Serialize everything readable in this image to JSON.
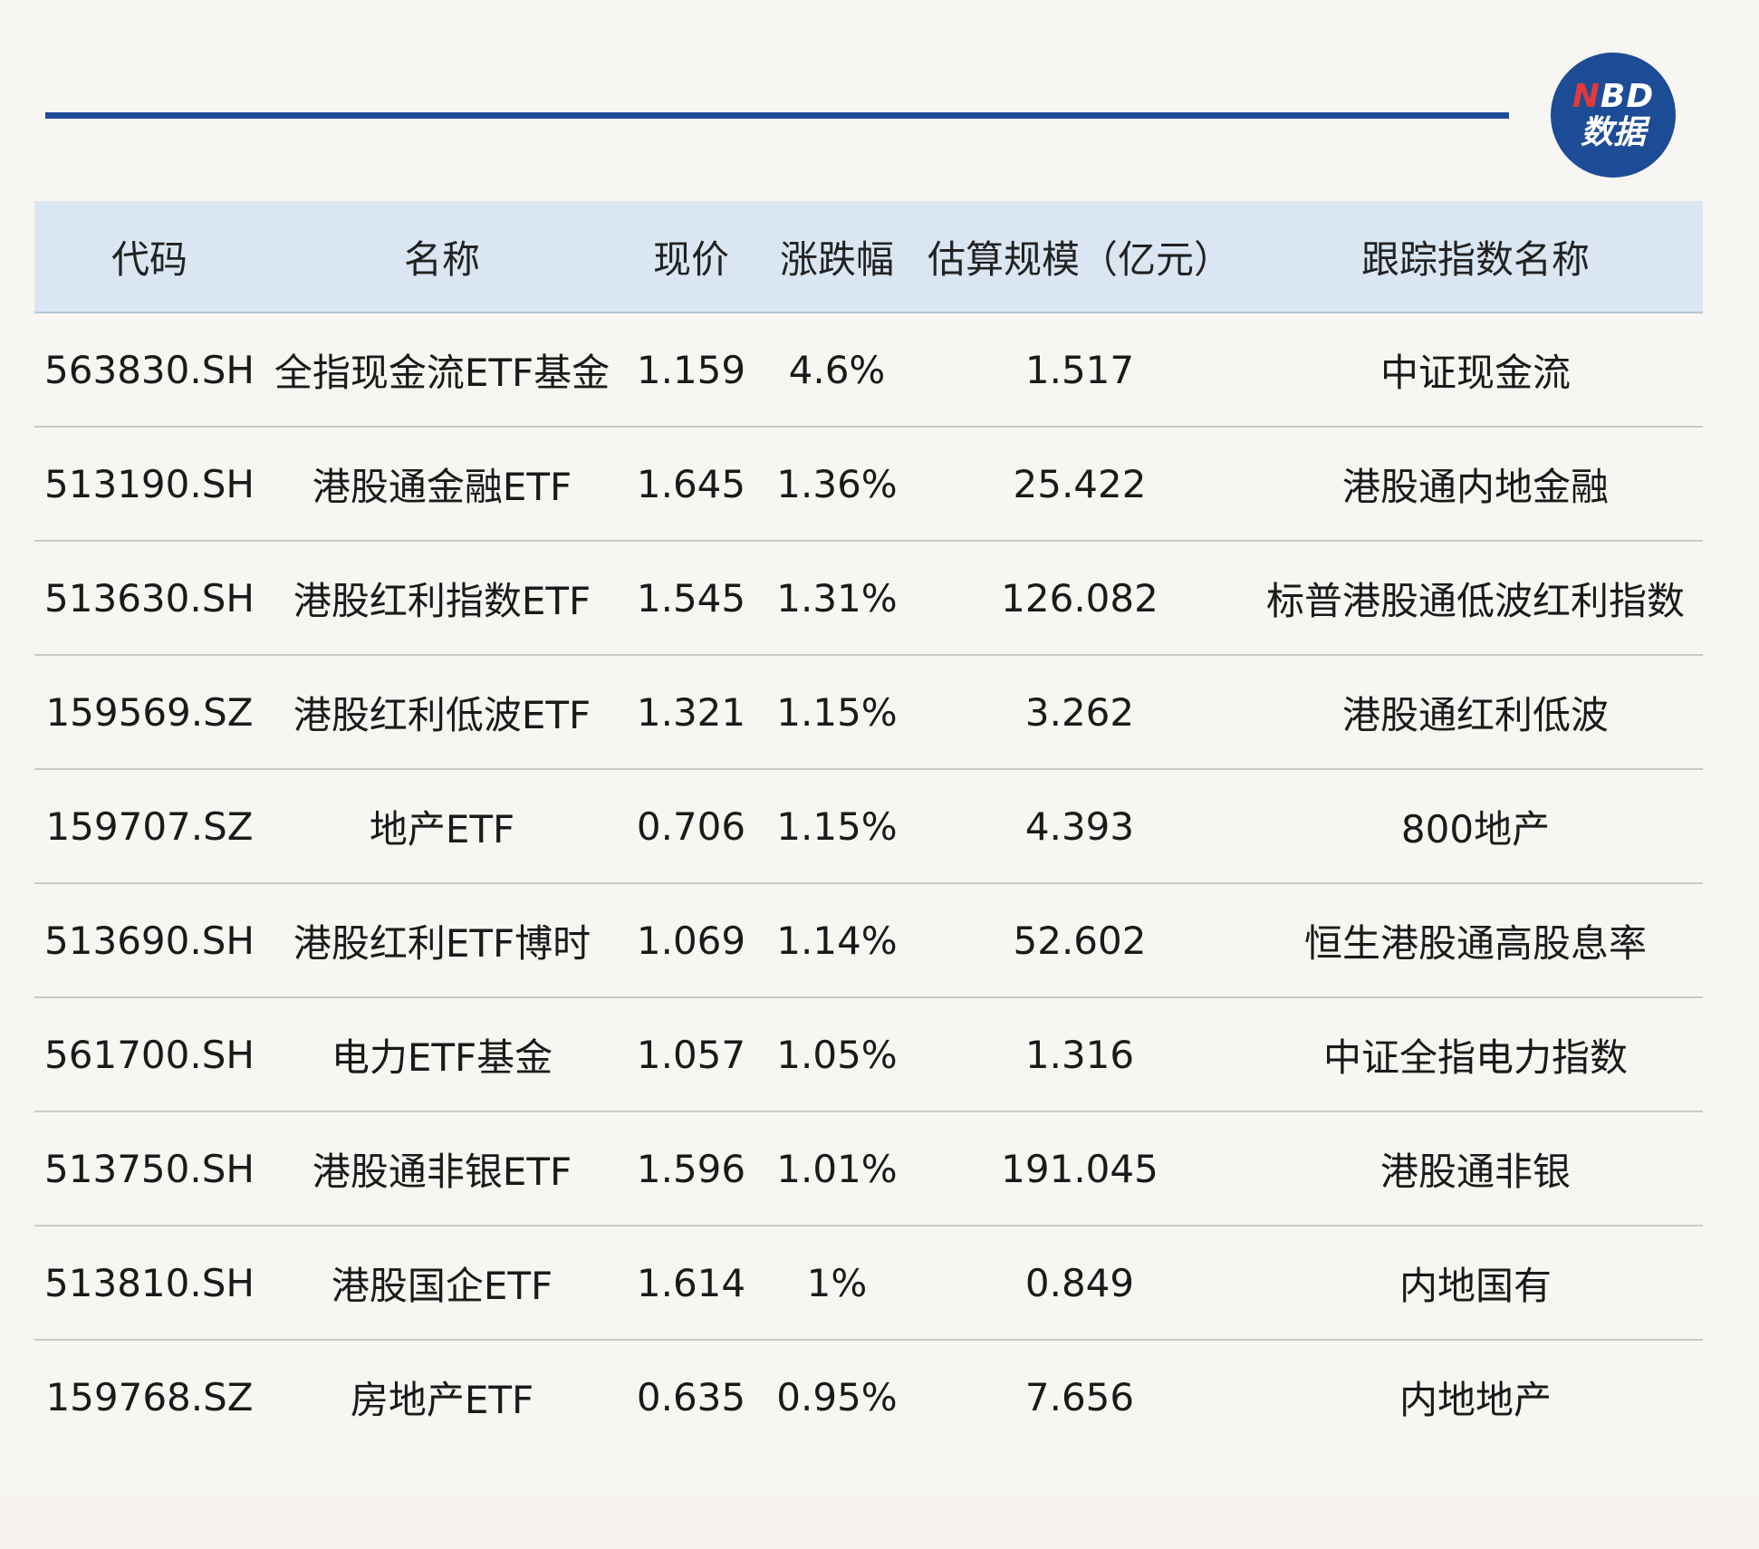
{
  "logo": {
    "line1_n": "N",
    "line1_rest": "BD",
    "line2": "数据"
  },
  "table": {
    "headers": [
      "代码",
      "名称",
      "现价",
      "涨跌幅",
      "估算规模（亿元）",
      "跟踪指数名称"
    ],
    "rows": [
      [
        "563830.SH",
        "全指现金流ETF基金",
        "1.159",
        "4.6%",
        "1.517",
        "中证现金流"
      ],
      [
        "513190.SH",
        "港股通金融ETF",
        "1.645",
        "1.36%",
        "25.422",
        "港股通内地金融"
      ],
      [
        "513630.SH",
        "港股红利指数ETF",
        "1.545",
        "1.31%",
        "126.082",
        "标普港股通低波红利指数"
      ],
      [
        "159569.SZ",
        "港股红利低波ETF",
        "1.321",
        "1.15%",
        "3.262",
        "港股通红利低波"
      ],
      [
        "159707.SZ",
        "地产ETF",
        "0.706",
        "1.15%",
        "4.393",
        "800地产"
      ],
      [
        "513690.SH",
        "港股红利ETF博时",
        "1.069",
        "1.14%",
        "52.602",
        "恒生港股通高股息率"
      ],
      [
        "561700.SH",
        "电力ETF基金",
        "1.057",
        "1.05%",
        "1.316",
        "中证全指电力指数"
      ],
      [
        "513750.SH",
        "港股通非银ETF",
        "1.596",
        "1.01%",
        "191.045",
        "港股通非银"
      ],
      [
        "513810.SH",
        "港股国企ETF",
        "1.614",
        "1%",
        "0.849",
        "内地国有"
      ],
      [
        "159768.SZ",
        "房地产ETF",
        "0.635",
        "0.95%",
        "7.656",
        "内地地产"
      ]
    ]
  },
  "colors": {
    "accent": "#1d4c96",
    "header_bg": "#dae6f2",
    "page_bg": "#f8f6f2",
    "logo_n": "#e23a3a"
  }
}
